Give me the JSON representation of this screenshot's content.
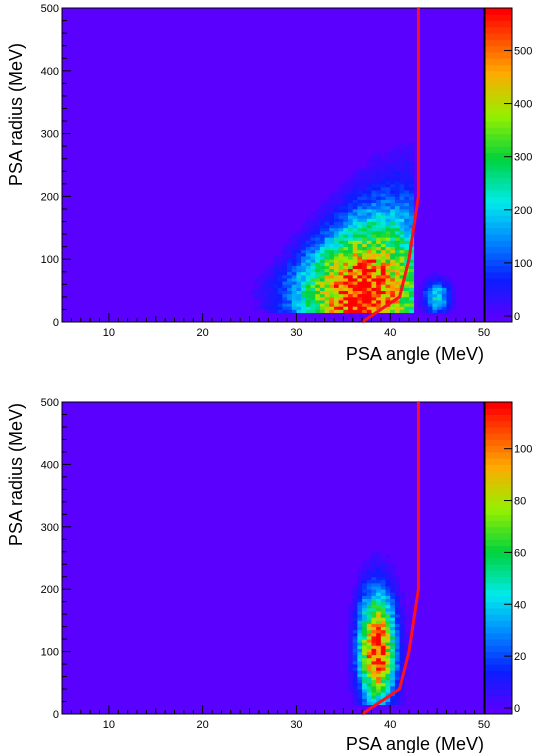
{
  "chart_data": [
    {
      "type": "heatmap",
      "title": "",
      "xlabel": "PSA angle (MeV)",
      "ylabel": "PSA radius (MeV)",
      "xlim": [
        5,
        50
      ],
      "ylim": [
        0,
        500
      ],
      "x_ticks": [
        10,
        20,
        30,
        40,
        50
      ],
      "y_ticks": [
        0,
        100,
        200,
        300,
        400,
        500
      ],
      "z_range": [
        0,
        580
      ],
      "z_ticks": [
        0,
        100,
        200,
        300,
        400,
        500
      ],
      "grid": false,
      "colorbar": "right",
      "background_color": "#5a00ff",
      "cut_line": {
        "color": "#ff1020",
        "points": [
          [
            37,
            0
          ],
          [
            41,
            40
          ],
          [
            42,
            100
          ],
          [
            43,
            200
          ],
          [
            43,
            500
          ]
        ]
      },
      "hotspots": [
        {
          "x": 36.5,
          "y": 40,
          "z": 580
        },
        {
          "x": 38,
          "y": 80,
          "z": 330
        },
        {
          "x": 35,
          "y": 60,
          "z": 260
        },
        {
          "x": 45,
          "y": 40,
          "z": 210
        },
        {
          "x": 39,
          "y": 150,
          "z": 150
        },
        {
          "x": 30,
          "y": 40,
          "z": 120
        },
        {
          "x": 26,
          "y": 35,
          "z": 50
        }
      ]
    },
    {
      "type": "heatmap",
      "title": "",
      "xlabel": "PSA angle (MeV)",
      "ylabel": "PSA radius (MeV)",
      "xlim": [
        5,
        50
      ],
      "ylim": [
        0,
        500
      ],
      "x_ticks": [
        10,
        20,
        30,
        40,
        50
      ],
      "y_ticks": [
        0,
        100,
        200,
        300,
        400,
        500
      ],
      "z_range": [
        0,
        118
      ],
      "z_ticks": [
        0,
        20,
        40,
        60,
        80,
        100
      ],
      "grid": false,
      "colorbar": "right",
      "background_color": "#5a00ff",
      "cut_line": {
        "color": "#ff1020",
        "points": [
          [
            37,
            0
          ],
          [
            41,
            40
          ],
          [
            42,
            100
          ],
          [
            43,
            200
          ],
          [
            43,
            500
          ]
        ]
      },
      "hotspots": [
        {
          "x": 38.5,
          "y": 100,
          "z": 118
        },
        {
          "x": 39,
          "y": 160,
          "z": 75
        },
        {
          "x": 37,
          "y": 60,
          "z": 55
        },
        {
          "x": 39.5,
          "y": 230,
          "z": 30
        }
      ]
    }
  ]
}
